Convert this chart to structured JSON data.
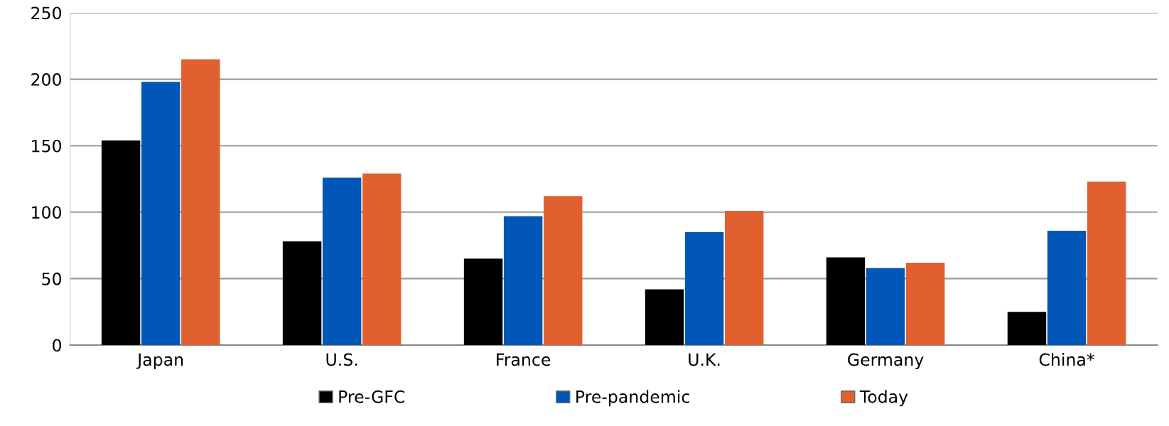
{
  "chart_data": {
    "type": "bar",
    "categories": [
      "Japan",
      "U.S.",
      "France",
      "U.K.",
      "Germany",
      "China*"
    ],
    "series": [
      {
        "name": "Pre-GFC",
        "color": "#000000",
        "values": [
          154,
          78,
          65,
          42,
          66,
          25
        ]
      },
      {
        "name": "Pre-pandemic",
        "color": "#0057b8",
        "values": [
          198,
          126,
          97,
          85,
          58,
          86
        ]
      },
      {
        "name": "Today",
        "color": "#e0612f",
        "values": [
          215,
          129,
          112,
          101,
          62,
          123
        ]
      }
    ],
    "ylim": [
      0,
      250
    ],
    "yticks": [
      0,
      50,
      100,
      150,
      200,
      250
    ],
    "grid": "y",
    "legend": "bottom"
  }
}
